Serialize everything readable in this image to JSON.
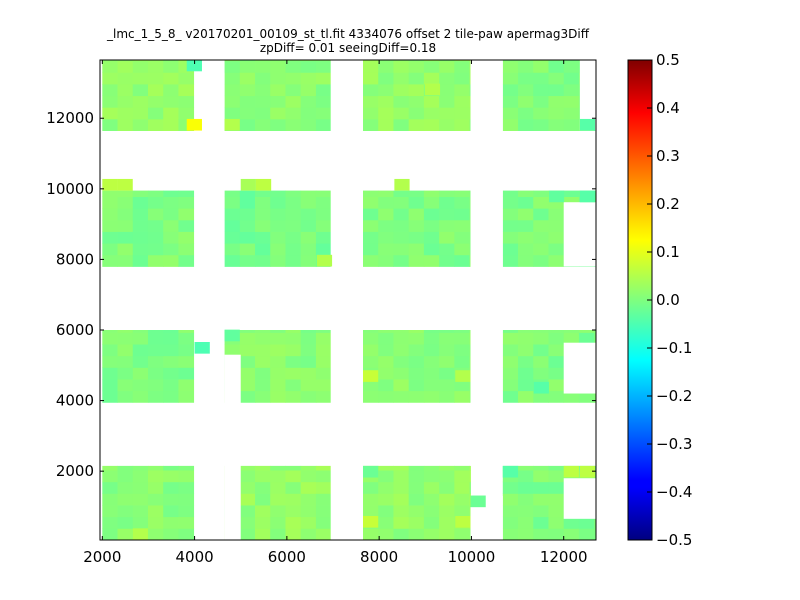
{
  "chart_data": {
    "type": "heatmap",
    "title_line1": "_lmc_1_5_8_ v20170201_00109_st_tl.fit 4334076 offset 2 tile-paw apermag3Diff",
    "title_line2": "zpDiff= 0.01 seeingDiff=0.18",
    "xlim": [
      1950,
      12700
    ],
    "ylim": [
      50,
      13650
    ],
    "x_ticks": [
      2000,
      4000,
      6000,
      8000,
      10000,
      12000
    ],
    "y_ticks": [
      2000,
      4000,
      6000,
      8000,
      10000,
      12000
    ],
    "colorbar": {
      "colormap": "jet",
      "vmin": -0.5,
      "vmax": 0.5,
      "ticks": [
        0.5,
        0.4,
        0.3,
        0.2,
        0.1,
        0.0,
        -0.1,
        -0.2,
        -0.3,
        -0.4,
        -0.5
      ],
      "tick_labels": [
        "0.5",
        "0.4",
        "0.3",
        "0.2",
        "0.1",
        "0.0",
        "−0.1",
        "−0.2",
        "−0.3",
        "−0.4",
        "−0.5"
      ]
    },
    "cell_size": 330,
    "detectors": [
      {
        "x0": 2000,
        "x1": 3980,
        "y0": 11650,
        "y1": 13650,
        "value": 0.02
      },
      {
        "x0": 4650,
        "x1": 6950,
        "y0": 11650,
        "y1": 13650,
        "value": 0.01
      },
      {
        "x0": 7650,
        "x1": 9980,
        "y0": 11650,
        "y1": 13650,
        "value": 0.02
      },
      {
        "x0": 10680,
        "x1": 12700,
        "y0": 11650,
        "y1": 13650,
        "value": 0.0
      },
      {
        "x0": 2000,
        "x1": 3980,
        "y0": 7800,
        "y1": 9950,
        "value": 0.0
      },
      {
        "x0": 4650,
        "x1": 6950,
        "y0": 7800,
        "y1": 9950,
        "value": -0.01
      },
      {
        "x0": 7650,
        "x1": 9980,
        "y0": 7800,
        "y1": 9950,
        "value": 0.0
      },
      {
        "x0": 10680,
        "x1": 12700,
        "y0": 7800,
        "y1": 9950,
        "value": 0.0
      },
      {
        "x0": 2000,
        "x1": 3980,
        "y0": 3950,
        "y1": 6000,
        "value": 0.0
      },
      {
        "x0": 4650,
        "x1": 6950,
        "y0": 3950,
        "y1": 6000,
        "value": 0.01
      },
      {
        "x0": 7650,
        "x1": 9980,
        "y0": 3950,
        "y1": 6000,
        "value": 0.01
      },
      {
        "x0": 10680,
        "x1": 12700,
        "y0": 3950,
        "y1": 6000,
        "value": 0.0
      },
      {
        "x0": 2000,
        "x1": 3980,
        "y0": 50,
        "y1": 2150,
        "value": 0.01
      },
      {
        "x0": 4650,
        "x1": 6950,
        "y0": 50,
        "y1": 2150,
        "value": 0.02
      },
      {
        "x0": 7650,
        "x1": 9980,
        "y0": 50,
        "y1": 2150,
        "value": 0.02
      },
      {
        "x0": 10680,
        "x1": 12700,
        "y0": 50,
        "y1": 2150,
        "value": 0.0
      }
    ],
    "gaps": [
      {
        "x0": 4000,
        "x1": 4650,
        "y0": 11650,
        "y1": 13300
      },
      {
        "x0": 4000,
        "x1": 4650,
        "y0": 7800,
        "y1": 10000
      },
      {
        "x0": 4000,
        "x1": 4650,
        "y0": 50,
        "y1": 5300
      },
      {
        "x0": 4650,
        "x1": 5000,
        "y0": 50,
        "y1": 5300
      },
      {
        "x0": 6950,
        "x1": 7650,
        "y0": 50,
        "y1": 13650
      },
      {
        "x0": 9980,
        "x1": 10680,
        "y0": 2150,
        "y1": 13650
      },
      {
        "x0": 9980,
        "x1": 10680,
        "y0": 50,
        "y1": 1300
      },
      {
        "x0": 12000,
        "x1": 12700,
        "y0": 7800,
        "y1": 9620
      },
      {
        "x0": 12000,
        "x1": 12700,
        "y0": 4200,
        "y1": 5640
      },
      {
        "x0": 12000,
        "x1": 12700,
        "y0": 650,
        "y1": 1800
      },
      {
        "x0": 12350,
        "x1": 12700,
        "y0": 11650,
        "y1": 13650
      }
    ],
    "extra_cells": [
      {
        "x": 3830,
        "y": 11650,
        "value": 0.12
      },
      {
        "x": 3830,
        "y": 13330,
        "value": -0.05
      },
      {
        "x": 4000,
        "y": 5330,
        "value": -0.05
      },
      {
        "x": 4650,
        "y": 5680,
        "value": -0.03
      },
      {
        "x": 2000,
        "y": 9950,
        "value": 0.06
      },
      {
        "x": 2330,
        "y": 9950,
        "value": 0.06
      },
      {
        "x": 5000,
        "y": 9950,
        "value": 0.04
      },
      {
        "x": 5330,
        "y": 9950,
        "value": 0.06
      },
      {
        "x": 8330,
        "y": 9950,
        "value": 0.05
      },
      {
        "x": 9980,
        "y": 980,
        "value": -0.02
      },
      {
        "x": 7650,
        "y": 1820,
        "value": -0.02
      },
      {
        "x": 7650,
        "y": 400,
        "value": 0.07
      },
      {
        "x": 9650,
        "y": 400,
        "value": 0.06
      },
      {
        "x": 2660,
        "y": 50,
        "value": 0.05
      },
      {
        "x": 12350,
        "y": 11650,
        "value": -0.04
      },
      {
        "x": 12350,
        "y": 9620,
        "value": -0.04
      },
      {
        "x": 11680,
        "y": 9620,
        "value": -0.03
      },
      {
        "x": 11350,
        "y": 4200,
        "value": -0.04
      },
      {
        "x": 10680,
        "y": 1820,
        "value": -0.04
      },
      {
        "x": 12000,
        "y": 1820,
        "value": 0.06
      },
      {
        "x": 12350,
        "y": 1820,
        "value": 0.06
      },
      {
        "x": 7650,
        "y": 4530,
        "value": 0.07
      },
      {
        "x": 9650,
        "y": 4530,
        "value": 0.05
      },
      {
        "x": 4650,
        "y": 11650,
        "value": 0.05
      },
      {
        "x": 8990,
        "y": 12650,
        "value": 0.05
      },
      {
        "x": 6650,
        "y": 7800,
        "value": 0.05
      }
    ]
  }
}
